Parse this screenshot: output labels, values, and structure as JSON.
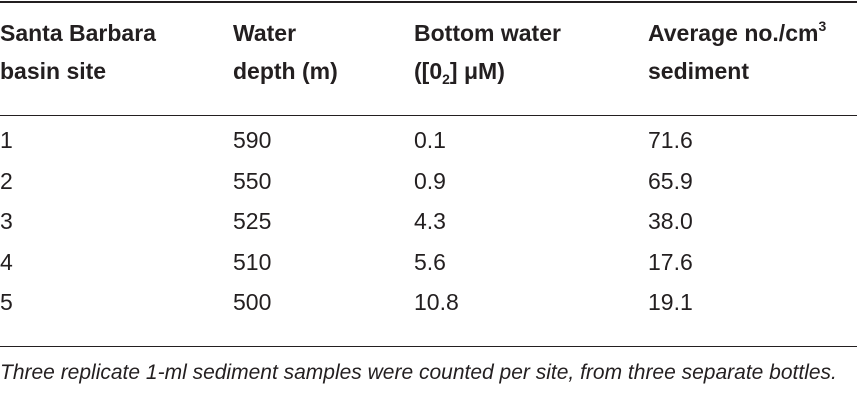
{
  "table": {
    "headers": [
      {
        "line1": "Santa Barbara",
        "line2": "basin site"
      },
      {
        "line1": "Water",
        "line2": "depth (m)"
      },
      {
        "line1": "Bottom water",
        "line2_pre": "([0",
        "line2_sub": "2",
        "line2_post": "] μM)"
      },
      {
        "line1_pre": "Average no./cm",
        "line1_sup": "3",
        "line2": "sediment"
      }
    ],
    "rows": [
      [
        "1",
        "590",
        "0.1",
        "71.6"
      ],
      [
        "2",
        "550",
        "0.9",
        "65.9"
      ],
      [
        "3",
        "525",
        "4.3",
        "38.0"
      ],
      [
        "4",
        "510",
        "5.6",
        "17.6"
      ],
      [
        "5",
        "500",
        "10.8",
        "19.1"
      ]
    ]
  },
  "footnote": "Three replicate 1-ml sediment samples were counted per site, from three separate bottles."
}
